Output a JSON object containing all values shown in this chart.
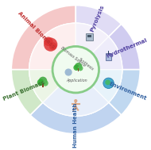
{
  "background": "#ffffff",
  "segments": [
    {
      "t1": 90,
      "t2": 180,
      "outer_color": "#f5c8c8",
      "inner_color": "#fde8e8",
      "label": "Animal Biomass",
      "lcolor": "#c03030"
    },
    {
      "t1": 45,
      "t2": 90,
      "outer_color": "#e0dcf5",
      "inner_color": "#eeeaf8",
      "label": "Pyrolysis",
      "lcolor": "#5040a0"
    },
    {
      "t1": 0,
      "t2": 45,
      "outer_color": "#d0ccf0",
      "inner_color": "#e8e4f8",
      "label": "Hydrothermal",
      "lcolor": "#5040a0"
    },
    {
      "t1": 315,
      "t2": 360,
      "outer_color": "#c0d8f0",
      "inner_color": "#ddeef8",
      "label": "Environment",
      "lcolor": "#3060a0"
    },
    {
      "t1": 225,
      "t2": 315,
      "outer_color": "#c0d4f0",
      "inner_color": "#dde8f8",
      "label": "Human Health",
      "lcolor": "#3060a0"
    },
    {
      "t1": 180,
      "t2": 225,
      "outer_color": "#d0e8c8",
      "inner_color": "#e4f2dc",
      "label": "Plant Biomass",
      "lcolor": "#3a7030"
    }
  ],
  "R_out": 0.97,
  "R_seg": 0.7,
  "R_ring": 0.35,
  "icon_r": 0.535,
  "label_r": 0.84,
  "center_text1": "Biomass Source",
  "center_text2": "Synthesis",
  "center_text3": "Application",
  "center_border": "#88cc88",
  "center_fill": "#f0fbf0",
  "separator_color": "#ffffff",
  "icon_colors": [
    "#e04444",
    "#8899bb",
    "#7788cc",
    "#44aacc",
    "#5577bb",
    "#44aa55"
  ],
  "icon_angles": [
    135,
    67.5,
    22.5,
    337.5,
    270,
    202.5
  ]
}
